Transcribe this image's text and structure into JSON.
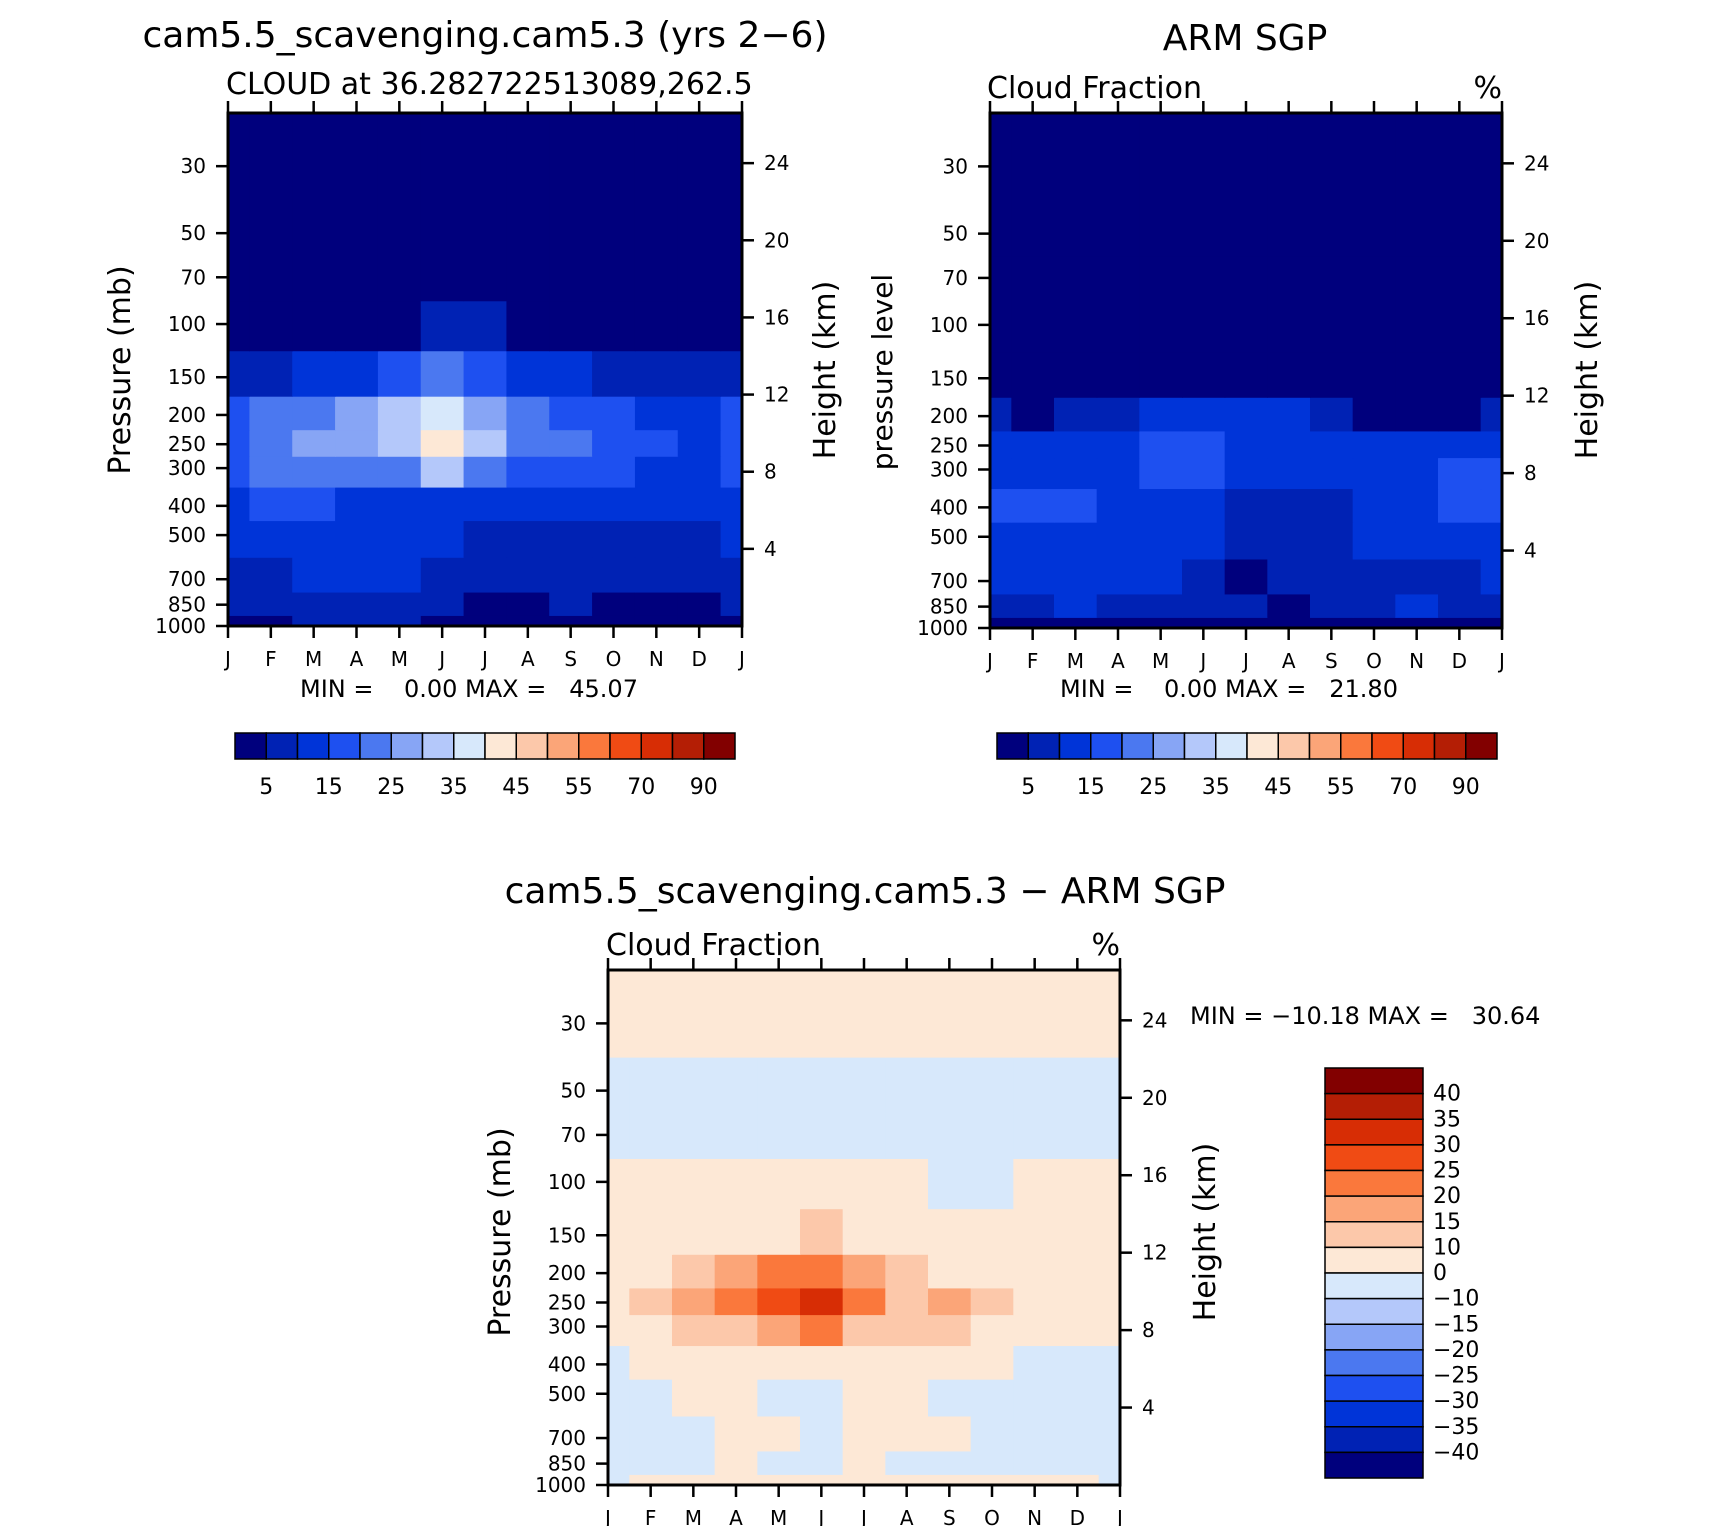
{
  "months": [
    "J",
    "F",
    "M",
    "A",
    "M",
    "J",
    "J",
    "A",
    "S",
    "O",
    "N",
    "D",
    "J"
  ],
  "pressure_levels": [
    30,
    50,
    70,
    100,
    150,
    200,
    250,
    300,
    400,
    500,
    700,
    850,
    1000
  ],
  "height_levels": [
    24,
    20,
    16,
    12,
    8,
    4
  ],
  "panels": {
    "model": {
      "header": "cam5.5_scavenging.cam5.3 (yrs 2−6)",
      "title": "CLOUD at 36.282722513089,262.5",
      "units": "",
      "ylabel": "Pressure (mb)",
      "ylabel_right": "Height (km)",
      "min_max": "MIN =    0.00 MAX =   45.07"
    },
    "obs": {
      "header": "ARM SGP",
      "title": "Cloud Fraction",
      "units": "%",
      "ylabel": "pressure level",
      "ylabel_right": "Height (km)",
      "min_max": "MIN =    0.00 MAX =   21.80"
    },
    "diff": {
      "header": "cam5.5_scavenging.cam5.3 − ARM SGP",
      "title": "Cloud Fraction",
      "units": "%",
      "ylabel": "Pressure (mb)",
      "ylabel_right": "Height (km)",
      "min_max": "MIN = −10.18 MAX =   30.64"
    }
  },
  "colorbar_abs": {
    "colors": [
      "#00007d",
      "#0022b4",
      "#0034d8",
      "#1e50f0",
      "#4b78f0",
      "#87a5f5",
      "#b4c8fa",
      "#d7e8fb",
      "#fde8d6",
      "#fcc8aa",
      "#fba578",
      "#fa783c",
      "#f04b14",
      "#d72d05",
      "#b41e05",
      "#820000"
    ],
    "labels": [
      "5",
      "15",
      "25",
      "35",
      "45",
      "55",
      "70",
      "90"
    ]
  },
  "colorbar_diff": {
    "colors": [
      "#820000",
      "#b41e05",
      "#d72d05",
      "#f04b14",
      "#fa783c",
      "#fba578",
      "#fcc8aa",
      "#fde8d6",
      "#d7e8fb",
      "#b4c8fa",
      "#87a5f5",
      "#4b78f0",
      "#1e50f0",
      "#0034d8",
      "#0022b4",
      "#00007d"
    ],
    "labels": [
      "40",
      "35",
      "30",
      "25",
      "20",
      "15",
      "10",
      "0",
      "−10",
      "−15",
      "−20",
      "−25",
      "−30",
      "−35",
      "−40"
    ]
  },
  "chart_data": [
    {
      "type": "heatmap",
      "title": "CLOUD at 36.282722513089,262.5",
      "xlabel": "",
      "ylabel": "Pressure (mb)",
      "x": [
        "J",
        "F",
        "M",
        "A",
        "M",
        "J",
        "J",
        "A",
        "S",
        "O",
        "N",
        "D",
        "J"
      ],
      "y": [
        1000,
        850,
        700,
        500,
        400,
        300,
        250,
        200,
        150,
        100,
        70,
        50,
        30
      ],
      "y_scale": "log",
      "ylim": [
        1000,
        20
      ],
      "z_min": 0.0,
      "z_max": 45.07,
      "values": [
        [
          3,
          3,
          7,
          7,
          7,
          3,
          3,
          3,
          3,
          3,
          4,
          4,
          3
        ],
        [
          6,
          6,
          9,
          9,
          9,
          6,
          2,
          3,
          5,
          4,
          4,
          4,
          6
        ],
        [
          9,
          9,
          12,
          12,
          12,
          9,
          5,
          6,
          8,
          6,
          6,
          6,
          9
        ],
        [
          12,
          12,
          12,
          12,
          12,
          12,
          9,
          8,
          8,
          8,
          8,
          8,
          12
        ],
        [
          14,
          16,
          16,
          14,
          14,
          14,
          12,
          11,
          11,
          11,
          10,
          10,
          14
        ],
        [
          17,
          22,
          24,
          21,
          24,
          30,
          24,
          18,
          17,
          16,
          14,
          13,
          17
        ],
        [
          17,
          24,
          28,
          28,
          34,
          44,
          30,
          24,
          21,
          19,
          15,
          13,
          17
        ],
        [
          15,
          20,
          23,
          26,
          33,
          38,
          28,
          20,
          17,
          16,
          13,
          12,
          15
        ],
        [
          6,
          8,
          10,
          12,
          16,
          20,
          16,
          12,
          10,
          8,
          7,
          6,
          6
        ],
        [
          2,
          2,
          3,
          3,
          4,
          6,
          5,
          3,
          2,
          2,
          2,
          2,
          2
        ],
        [
          1,
          1,
          1,
          1,
          1,
          1,
          1,
          1,
          1,
          1,
          1,
          1,
          1
        ],
        [
          0,
          0,
          0,
          0,
          0,
          0,
          0,
          0,
          0,
          0,
          0,
          0,
          0
        ],
        [
          0,
          0,
          0,
          0,
          0,
          0,
          0,
          0,
          0,
          0,
          0,
          0,
          0
        ]
      ]
    },
    {
      "type": "heatmap",
      "title": "Cloud Fraction",
      "xlabel": "",
      "ylabel": "pressure level",
      "x": [
        "J",
        "F",
        "M",
        "A",
        "M",
        "J",
        "J",
        "A",
        "S",
        "O",
        "N",
        "D",
        "J"
      ],
      "y": [
        1000,
        850,
        700,
        500,
        400,
        300,
        250,
        200,
        150,
        100,
        70,
        50,
        30
      ],
      "y_scale": "log",
      "ylim": [
        1000,
        20
      ],
      "z_min": 0.0,
      "z_max": 21.8,
      "values": [
        [
          2,
          2,
          2,
          2,
          2,
          2,
          2,
          2,
          2,
          2,
          2,
          2,
          2
        ],
        [
          7,
          9,
          12,
          9,
          9,
          9,
          6,
          4,
          7,
          9,
          13,
          9,
          8
        ],
        [
          12,
          12,
          11,
          11,
          11,
          9,
          4,
          6,
          8,
          9,
          9,
          9,
          12
        ],
        [
          14,
          14,
          13,
          13,
          13,
          10,
          8,
          8,
          8,
          12,
          13,
          12,
          14
        ],
        [
          18,
          16,
          15,
          13,
          13,
          11,
          8,
          8,
          8,
          13,
          14,
          15,
          17
        ],
        [
          14,
          13,
          14,
          14,
          16,
          15,
          10,
          11,
          10,
          13,
          14,
          15,
          18
        ],
        [
          12,
          12,
          13,
          14,
          15,
          15,
          13,
          13,
          11,
          11,
          12,
          13,
          14
        ],
        [
          6,
          4,
          6,
          8,
          10,
          12,
          12,
          10,
          8,
          4,
          4,
          4,
          5
        ],
        [
          3,
          2,
          3,
          3,
          4,
          4,
          4,
          3,
          3,
          2,
          2,
          2,
          2
        ],
        [
          1,
          1,
          1,
          1,
          1,
          1,
          1,
          1,
          1,
          1,
          1,
          1,
          1
        ],
        [
          0,
          0,
          0,
          0,
          0,
          0,
          0,
          0,
          0,
          0,
          0,
          0,
          0
        ],
        [
          0,
          0,
          0,
          0,
          0,
          0,
          0,
          0,
          0,
          0,
          0,
          0,
          0
        ],
        [
          0,
          0,
          0,
          0,
          0,
          0,
          0,
          0,
          0,
          0,
          0,
          0,
          0
        ]
      ]
    },
    {
      "type": "heatmap",
      "title": "Cloud Fraction",
      "xlabel": "",
      "ylabel": "Pressure (mb)",
      "x": [
        "J",
        "F",
        "M",
        "A",
        "M",
        "J",
        "J",
        "A",
        "S",
        "O",
        "N",
        "D",
        "J"
      ],
      "y": [
        1000,
        850,
        700,
        500,
        400,
        300,
        250,
        200,
        150,
        100,
        70,
        50,
        30
      ],
      "y_scale": "log",
      "ylim": [
        1000,
        20
      ],
      "z_min": -10.18,
      "z_max": 30.64,
      "values": [
        [
          -2,
          2,
          2,
          2,
          2,
          2,
          2,
          2,
          2,
          2,
          2,
          2,
          -2
        ],
        [
          -3,
          -3,
          -3,
          2,
          -3,
          -3,
          3,
          -3,
          -3,
          -3,
          -3,
          -3,
          -3
        ],
        [
          -3,
          -3,
          -3,
          3,
          3,
          -2,
          2,
          3,
          3,
          -3,
          -3,
          -3,
          -3
        ],
        [
          -3,
          -2,
          3,
          3,
          -2,
          -2,
          3,
          3,
          -2,
          -3,
          -3,
          -3,
          -3
        ],
        [
          -3,
          3,
          5,
          5,
          5,
          6,
          5,
          5,
          5,
          3,
          -2,
          -3,
          -3
        ],
        [
          2,
          8,
          12,
          14,
          18,
          20,
          14,
          10,
          12,
          6,
          3,
          2,
          2
        ],
        [
          3,
          14,
          18,
          22,
          26,
          30,
          20,
          12,
          16,
          11,
          4,
          3,
          3
        ],
        [
          2,
          6,
          12,
          16,
          20,
          24,
          16,
          10,
          8,
          6,
          3,
          2,
          2
        ],
        [
          1,
          2,
          3,
          6,
          8,
          10,
          6,
          3,
          2,
          2,
          1,
          1,
          1
        ],
        [
          1,
          1,
          1,
          1,
          1,
          1,
          1,
          1,
          -2,
          -2,
          1,
          1,
          1
        ],
        [
          -2,
          -2,
          -2,
          -2,
          -2,
          -2,
          -2,
          -2,
          -2,
          -2,
          -2,
          -2,
          -2
        ],
        [
          -2,
          -2,
          -2,
          -2,
          -2,
          -2,
          -2,
          -2,
          -2,
          -2,
          -2,
          -2,
          -2
        ],
        [
          2,
          2,
          2,
          2,
          2,
          2,
          2,
          2,
          2,
          2,
          2,
          2,
          2
        ]
      ]
    }
  ]
}
